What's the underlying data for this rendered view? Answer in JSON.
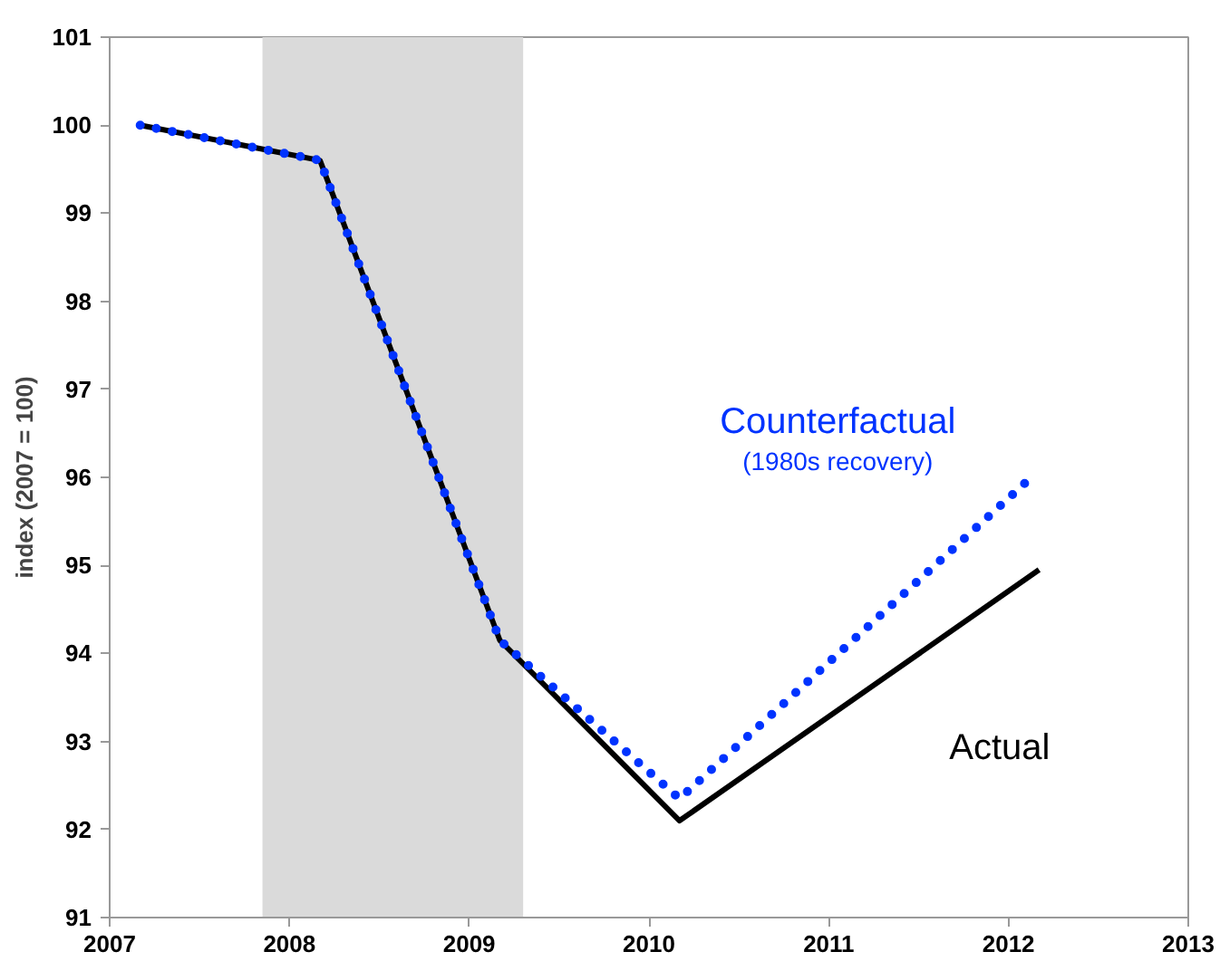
{
  "chart_data": {
    "type": "line",
    "ylabel": "index (2007 = 100)",
    "xlim": [
      2007,
      2013
    ],
    "xticks": [
      2007,
      2008,
      2009,
      2010,
      2011,
      2012,
      2013
    ],
    "ylim": [
      91,
      101
    ],
    "yticks": [
      91,
      92,
      93,
      94,
      95,
      96,
      97,
      98,
      99,
      100,
      101
    ],
    "grid": false,
    "bands": [
      {
        "axis": "x",
        "from": 2007.85,
        "to": 2009.3,
        "color": "#dadada"
      }
    ],
    "series": [
      {
        "name": "Actual",
        "color": "#000000",
        "line_style": "solid",
        "x": [
          2007.17,
          2008.17,
          2009.17,
          2010.17,
          2012.17
        ],
        "values": [
          100,
          99.6,
          94.15,
          92.1,
          94.95
        ]
      },
      {
        "name": "Counterfactual",
        "color": "#0033ff",
        "line_style": "dotted",
        "x": [
          2007.17,
          2008.17,
          2009.17,
          2010.17,
          2012.1
        ],
        "values": [
          100,
          99.6,
          94.15,
          92.35,
          95.95
        ]
      }
    ],
    "annotations": [
      "(1980s recovery)"
    ]
  }
}
